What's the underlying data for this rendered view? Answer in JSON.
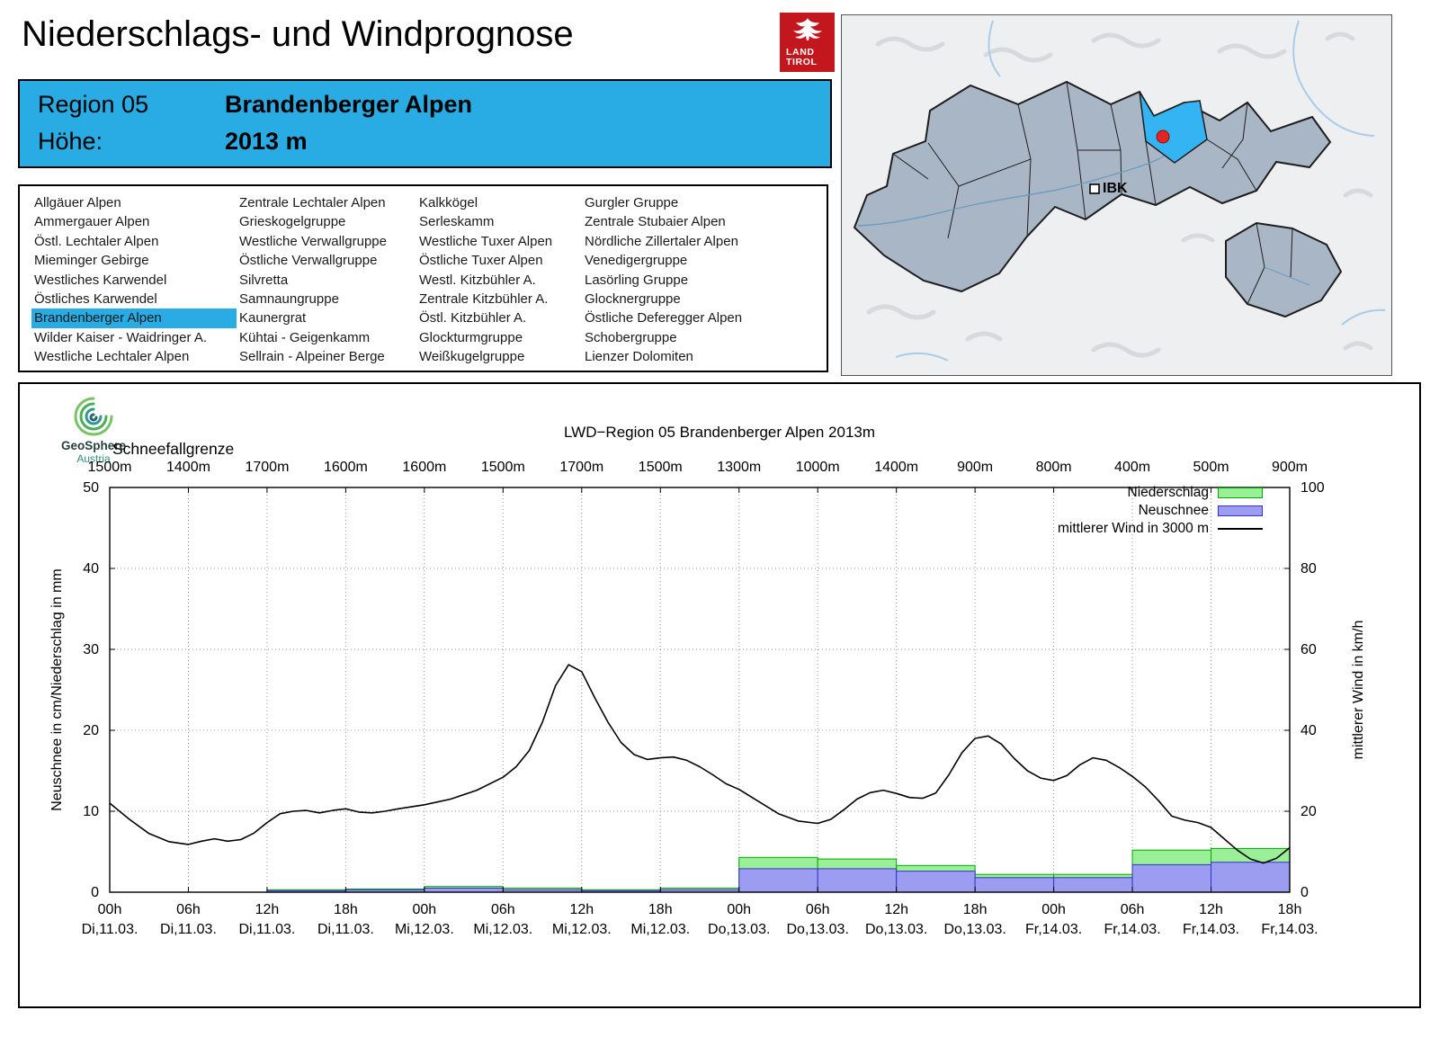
{
  "header": {
    "title": "Niederschlags- und Windprognose",
    "logo_line1": "LAND",
    "logo_line2": "TIROL"
  },
  "region_box": {
    "region_label": "Region 05",
    "region_name": "Brandenberger Alpen",
    "hoehe_label": "Höhe:",
    "hoehe_value": "2013 m",
    "background_color": "#29abe3"
  },
  "region_list": {
    "selected": "Brandenberger Alpen",
    "columns": [
      [
        "Allgäuer Alpen",
        "Ammergauer Alpen",
        "Östl. Lechtaler Alpen",
        "Mieminger Gebirge",
        "Westliches Karwendel",
        "Östliches Karwendel",
        "Brandenberger Alpen",
        "Wilder Kaiser - Waidringer A.",
        "Westliche Lechtaler Alpen"
      ],
      [
        "Zentrale Lechtaler Alpen",
        "Grieskogelgruppe",
        "Westliche Verwallgruppe",
        "Östliche Verwallgruppe",
        "Silvretta",
        "Samnaungruppe",
        "Kaunergrat",
        "Kühtai - Geigenkamm",
        "Sellrain - Alpeiner Berge"
      ],
      [
        "Kalkkögel",
        "Serleskamm",
        "Westliche Tuxer Alpen",
        "Östliche Tuxer Alpen",
        "Westl. Kitzbühler A.",
        "Zentrale Kitzbühler A.",
        "Östl. Kitzbühler A.",
        "Glockturmgruppe",
        "Weißkugelgruppe"
      ],
      [
        "Gurgler Gruppe",
        "Zentrale Stubaier Alpen",
        "Nördliche Zillertaler Alpen",
        "Venedigergruppe",
        "Lasörling Gruppe",
        "Glocknergruppe",
        "Östliche Deferegger Alpen",
        "Schobergruppe",
        "Lienzer Dolomiten"
      ]
    ]
  },
  "map": {
    "city_label": "IBK",
    "highlight_color": "#35b4f3",
    "marker_color": "#e2261f",
    "region_fill": "#a9b6c5"
  },
  "branding": {
    "name": "GeoSphere",
    "country": "Austria"
  },
  "chart_data": {
    "type": "mixed-bar-line",
    "title": "LWD−Region 05 Brandenberger Alpen 2013m",
    "snowline_label": "Schneefallgrenze",
    "snowline_values": [
      "1500m",
      "1400m",
      "1700m",
      "1600m",
      "1600m",
      "1500m",
      "1700m",
      "1500m",
      "1300m",
      "1000m",
      "1400m",
      "900m",
      "800m",
      "400m",
      "500m",
      "900m"
    ],
    "x_tick_time": [
      "00h",
      "06h",
      "12h",
      "18h",
      "00h",
      "06h",
      "12h",
      "18h",
      "00h",
      "06h",
      "12h",
      "18h",
      "00h",
      "06h",
      "12h",
      "18h"
    ],
    "x_tick_date": [
      "Di,11.03.",
      "Di,11.03.",
      "Di,11.03.",
      "Di,11.03.",
      "Mi,12.03.",
      "Mi,12.03.",
      "Mi,12.03.",
      "Mi,12.03.",
      "Do,13.03.",
      "Do,13.03.",
      "Do,13.03.",
      "Do,13.03.",
      "Fr,14.03.",
      "Fr,14.03.",
      "Fr,14.03.",
      "Fr,14.03."
    ],
    "ylabel_left": "Neuschnee in cm/Niederschlag in mm",
    "ylabel_right": "mittlerer Wind in km/h",
    "ylim_left": [
      0,
      50
    ],
    "ylim_right": [
      0,
      100
    ],
    "yticks_left": [
      0,
      10,
      20,
      30,
      40,
      50
    ],
    "yticks_right": [
      0,
      20,
      40,
      60,
      80,
      100
    ],
    "grid": true,
    "legend_position": "top-right",
    "series": [
      {
        "name": "Niederschlag",
        "type": "bar",
        "unit": "mm",
        "axis": "left",
        "color": "#99f096",
        "border": "#00a800",
        "interval_hours": 6,
        "values": [
          0,
          0,
          0.3,
          0.4,
          0.7,
          0.5,
          0.3,
          0.5,
          4.3,
          4.1,
          3.3,
          2.2,
          2.2,
          5.2,
          5.4
        ]
      },
      {
        "name": "Neuschnee",
        "type": "bar",
        "unit": "cm",
        "axis": "left",
        "color": "#9c9cf0",
        "border": "#3434cc",
        "interval_hours": 6,
        "values": [
          0,
          0,
          0.2,
          0.3,
          0.5,
          0.3,
          0.2,
          0.3,
          2.9,
          2.9,
          2.6,
          1.8,
          1.8,
          3.4,
          3.7
        ]
      },
      {
        "name": "mittlerer Wind in 3000 m",
        "type": "line",
        "unit": "km/h",
        "axis": "right",
        "color": "#000000",
        "points": [
          [
            0,
            22
          ],
          [
            1.5,
            18
          ],
          [
            3,
            14.5
          ],
          [
            4.5,
            12.5
          ],
          [
            6,
            11.8
          ],
          [
            7,
            12.6
          ],
          [
            8,
            13.2
          ],
          [
            9,
            12.6
          ],
          [
            10,
            13.0
          ],
          [
            11,
            14.6
          ],
          [
            12,
            17.2
          ],
          [
            13,
            19.4
          ],
          [
            14,
            20.0
          ],
          [
            15,
            20.2
          ],
          [
            16,
            19.6
          ],
          [
            17,
            20.2
          ],
          [
            18,
            20.6
          ],
          [
            19,
            19.8
          ],
          [
            20,
            19.6
          ],
          [
            21,
            20.0
          ],
          [
            22,
            20.6
          ],
          [
            24,
            21.6
          ],
          [
            26,
            23.0
          ],
          [
            28,
            25.2
          ],
          [
            30,
            28.4
          ],
          [
            31,
            31.0
          ],
          [
            32,
            35.0
          ],
          [
            33,
            42.0
          ],
          [
            34,
            51.0
          ],
          [
            35,
            56.2
          ],
          [
            36,
            54.5
          ],
          [
            37,
            48.0
          ],
          [
            38,
            42.0
          ],
          [
            39,
            37.0
          ],
          [
            40,
            34.0
          ],
          [
            41,
            32.8
          ],
          [
            42,
            33.2
          ],
          [
            43,
            33.4
          ],
          [
            44,
            32.6
          ],
          [
            45,
            31.0
          ],
          [
            46,
            29.0
          ],
          [
            47,
            26.8
          ],
          [
            48,
            25.4
          ],
          [
            49.5,
            22.4
          ],
          [
            51,
            19.4
          ],
          [
            52.5,
            17.6
          ],
          [
            54,
            17.0
          ],
          [
            55,
            18.0
          ],
          [
            56,
            20.4
          ],
          [
            57,
            23.0
          ],
          [
            58,
            24.6
          ],
          [
            59,
            25.2
          ],
          [
            60,
            24.4
          ],
          [
            61,
            23.4
          ],
          [
            62,
            23.2
          ],
          [
            63,
            24.5
          ],
          [
            64,
            29.0
          ],
          [
            65,
            34.5
          ],
          [
            66,
            38.0
          ],
          [
            67,
            38.6
          ],
          [
            68,
            36.6
          ],
          [
            69,
            33.0
          ],
          [
            70,
            30.0
          ],
          [
            71,
            28.2
          ],
          [
            72,
            27.6
          ],
          [
            73,
            28.8
          ],
          [
            74,
            31.5
          ],
          [
            75,
            33.2
          ],
          [
            76,
            32.6
          ],
          [
            77,
            30.8
          ],
          [
            78,
            28.6
          ],
          [
            79,
            26.0
          ],
          [
            80,
            22.6
          ],
          [
            81,
            18.8
          ],
          [
            82,
            17.8
          ],
          [
            83,
            17.2
          ],
          [
            84,
            16.0
          ],
          [
            85,
            13.2
          ],
          [
            86,
            10.4
          ],
          [
            87,
            8.2
          ],
          [
            88,
            7.2
          ],
          [
            89,
            8.4
          ],
          [
            90,
            11.0
          ]
        ]
      }
    ]
  }
}
